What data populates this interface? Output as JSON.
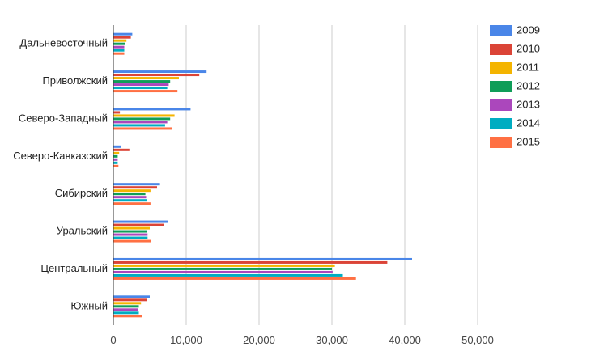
{
  "chart_data": {
    "type": "bar",
    "orientation": "horizontal",
    "categories": [
      "Дальневосточный",
      "Приволжский",
      "Северо-Западный",
      "Северо-Кавказский",
      "Сибирский",
      "Уральский",
      "Центральный",
      "Южный"
    ],
    "series": [
      {
        "name": "2009",
        "color": "#4a86e8",
        "values": [
          2600,
          12800,
          10600,
          1000,
          6400,
          7500,
          41000,
          5000
        ]
      },
      {
        "name": "2010",
        "color": "#db4437",
        "values": [
          2400,
          11800,
          900,
          2200,
          6000,
          6900,
          37600,
          4600
        ]
      },
      {
        "name": "2011",
        "color": "#f4b400",
        "values": [
          1800,
          9000,
          8400,
          800,
          5100,
          5000,
          30400,
          3800
        ]
      },
      {
        "name": "2012",
        "color": "#0f9d58",
        "values": [
          1600,
          7800,
          7800,
          600,
          4400,
          4600,
          30000,
          3500
        ]
      },
      {
        "name": "2013",
        "color": "#ab47bc",
        "values": [
          1500,
          7600,
          7400,
          600,
          4500,
          4700,
          30100,
          3400
        ]
      },
      {
        "name": "2014",
        "color": "#00acc1",
        "values": [
          1500,
          7400,
          7100,
          600,
          4600,
          4700,
          31500,
          3500
        ]
      },
      {
        "name": "2015",
        "color": "#ff7043",
        "values": [
          1500,
          8800,
          8000,
          700,
          5100,
          5200,
          33300,
          4000
        ]
      }
    ],
    "xlim": [
      0,
      50000
    ],
    "xticks": [
      0,
      10000,
      20000,
      30000,
      40000,
      50000
    ],
    "xtick_labels": [
      "0",
      "10,000",
      "20,000",
      "30,000",
      "40,000",
      "50,000"
    ],
    "grid": true,
    "legend_position": "right"
  }
}
